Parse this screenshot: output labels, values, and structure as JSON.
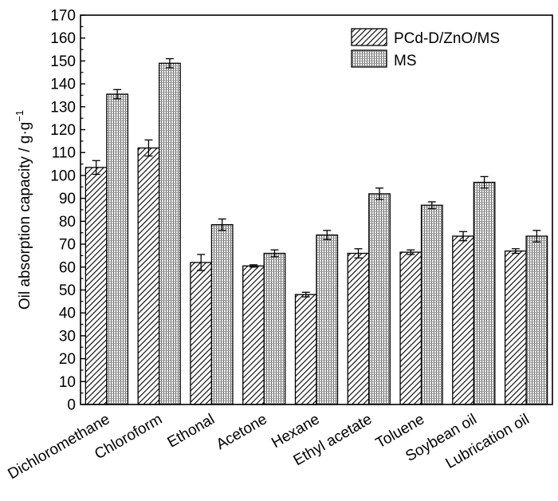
{
  "chart_data": {
    "type": "bar",
    "title": "",
    "xlabel": "",
    "ylabel": "Oil absorption capacity / g·g",
    "ylabel_superscript": "−1",
    "ylim": [
      0,
      170
    ],
    "yticks": [
      "0",
      "10",
      "20",
      "30",
      "40",
      "50",
      "60",
      "70",
      "80",
      "90",
      "100",
      "110",
      "120",
      "130",
      "140",
      "150",
      "160",
      "170"
    ],
    "ytick_values": [
      0,
      10,
      20,
      30,
      40,
      50,
      60,
      70,
      80,
      90,
      100,
      110,
      120,
      130,
      140,
      150,
      160,
      170
    ],
    "grid": false,
    "legend_position": "top-right",
    "categories": [
      "Dichloromethane",
      "Chloroform",
      "Ethonal",
      "Acetone",
      "Hexane",
      "Ethyl acetate",
      "Toluene",
      "Soybean oil",
      "Lubrication oil"
    ],
    "series": [
      {
        "name": "PCd-D/ZnO/MS",
        "pattern": "diagonal-hatch",
        "values": [
          103.5,
          112,
          62,
          60.5,
          48,
          66,
          66.5,
          73.5,
          67
        ],
        "errors": [
          3.0,
          3.5,
          3.5,
          0.5,
          1.0,
          2.0,
          1.0,
          2.0,
          1.0
        ]
      },
      {
        "name": "MS",
        "pattern": "dotted",
        "values": [
          135.5,
          149,
          78.5,
          66,
          74,
          92,
          87,
          97,
          73.5
        ],
        "errors": [
          2.0,
          2.0,
          2.5,
          1.5,
          2.0,
          2.5,
          1.5,
          2.5,
          2.5
        ]
      }
    ],
    "colors": {
      "bar_stroke": "#000000",
      "hatch": "#000000",
      "dot": "#555555",
      "fill": "#ffffff"
    }
  }
}
